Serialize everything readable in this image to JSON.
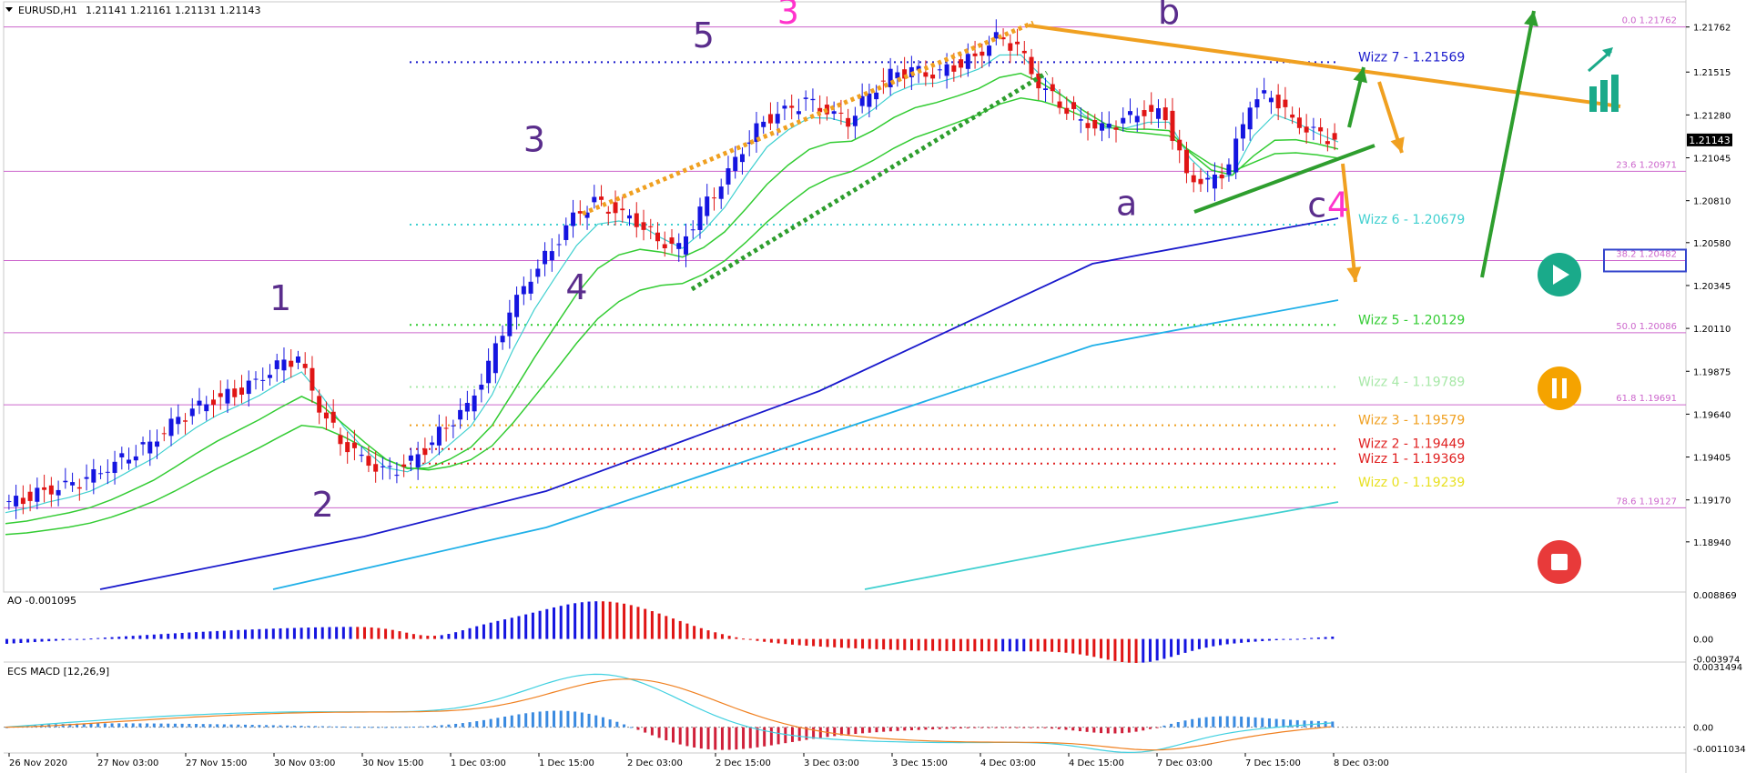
{
  "colors": {
    "background": "#ffffff",
    "bull_candle": "#1515e0",
    "bear_candle": "#e01515",
    "neutral_candle": "#8a8a8a",
    "fib_line": "#cc66cc",
    "wave_label": "#5a2d8c",
    "wave_label_alt": "#ff33cc",
    "ema_fast": "#40d0d0",
    "ema_mid": "#33cc33",
    "ema_slow": "#1a1acc",
    "ema_long": "#20b0e8",
    "arrow_green": "#2e9e2e",
    "arrow_orange": "#f0a020",
    "trend_orange": "#f0a020"
  },
  "header": {
    "symbol": "EURUSD,H1",
    "ohlc": "1.21141 1.21161 1.21131 1.21143"
  },
  "chart_data": [
    {
      "type": "candlestick",
      "title": "EURUSD,H1",
      "ylim": [
        1.1868,
        1.2189
      ],
      "y_ticks": [
        "1.21762",
        "1.21515",
        "1.21280",
        "1.21045",
        "1.20810",
        "1.20580",
        "1.20345",
        "1.20110",
        "1.19875",
        "1.19640",
        "1.19405",
        "1.19170",
        "1.18940"
      ],
      "x_ticks": [
        "26 Nov 2020",
        "27 Nov 03:00",
        "27 Nov 15:00",
        "30 Nov 03:00",
        "30 Nov 15:00",
        "1 Dec 03:00",
        "1 Dec 15:00",
        "2 Dec 03:00",
        "2 Dec 15:00",
        "3 Dec 03:00",
        "3 Dec 15:00",
        "4 Dec 03:00",
        "4 Dec 15:00",
        "7 Dec 03:00",
        "7 Dec 15:00",
        "8 Dec 03:00"
      ],
      "current_price": "1.21143",
      "fib_levels": [
        {
          "label": "0.0 1.21762",
          "value": 1.21762
        },
        {
          "label": "23.6 1.20971",
          "value": 1.20971
        },
        {
          "label": "38.2 1.20482",
          "value": 1.20482
        },
        {
          "label": "50.0 1.20086",
          "value": 1.20086
        },
        {
          "label": "61.8 1.19691",
          "value": 1.19691
        },
        {
          "label": "78.6 1.19127",
          "value": 1.19127
        }
      ],
      "wizz_levels": [
        {
          "label": "Wizz 7 - 1.21569",
          "value": 1.21569,
          "color": "#1a1acc"
        },
        {
          "label": "Wizz 6 - 1.20679",
          "value": 1.20679,
          "color": "#40d0d0"
        },
        {
          "label": "Wizz 5 - 1.20129",
          "value": 1.20129,
          "color": "#33cc33"
        },
        {
          "label": "Wizz 4 - 1.19789",
          "value": 1.19789,
          "color": "#a8e8a8"
        },
        {
          "label": "Wizz 3 - 1.19579",
          "value": 1.19579,
          "color": "#f0a020"
        },
        {
          "label": "Wizz 2 - 1.19449",
          "value": 1.19449,
          "color": "#e02020"
        },
        {
          "label": "Wizz 1 - 1.19369",
          "value": 1.19369,
          "color": "#e02020"
        },
        {
          "label": "Wizz 0 - 1.19239",
          "value": 1.19239,
          "color": "#e8e020"
        }
      ],
      "close_path": [
        1.1914,
        1.1918,
        1.1922,
        1.1924,
        1.1928,
        1.1935,
        1.1942,
        1.1948,
        1.1958,
        1.1966,
        1.1972,
        1.1976,
        1.1982,
        1.199,
        1.1995,
        1.1968,
        1.195,
        1.194,
        1.1932,
        1.1935,
        1.1945,
        1.1958,
        1.1968,
        1.199,
        1.202,
        1.204,
        1.2055,
        1.2072,
        1.208,
        1.2075,
        1.207,
        1.206,
        1.2055,
        1.2075,
        1.209,
        1.211,
        1.2125,
        1.213,
        1.2135,
        1.213,
        1.2125,
        1.214,
        1.215,
        1.2152,
        1.215,
        1.2155,
        1.216,
        1.217,
        1.2165,
        1.2145,
        1.2135,
        1.2125,
        1.212,
        1.2125,
        1.213,
        1.2128,
        1.2095,
        1.209,
        1.21,
        1.2135,
        1.214,
        1.2125,
        1.2118,
        1.2114
      ],
      "wave_labels": [
        {
          "text": "1",
          "date_idx": 13,
          "price": 1.2021
        },
        {
          "text": "2",
          "date_idx": 15,
          "price": 1.1908
        },
        {
          "text": "3",
          "date_idx": 25,
          "price": 1.2108
        },
        {
          "text": "4",
          "date_idx": 27,
          "price": 1.2027
        },
        {
          "text": "5",
          "date_idx": 33,
          "price": 1.2165
        },
        {
          "text": "3",
          "date_idx": 37,
          "price": 1.2178,
          "alt": true
        },
        {
          "text": "a",
          "date_idx": 53,
          "price": 1.2073
        },
        {
          "text": "b",
          "date_idx": 55,
          "price": 1.2178
        },
        {
          "text": "c",
          "date_idx": 62,
          "price": 1.2072
        },
        {
          "text": "4",
          "date_idx": 63,
          "price": 1.2072,
          "alt": true
        }
      ]
    },
    {
      "type": "bar",
      "title": "AO -0.001095",
      "ylim": [
        -0.0041,
        0.0089
      ],
      "y_ticks": [
        "0.008869",
        "0.00",
        "-0.003974"
      ]
    },
    {
      "type": "bar",
      "title": "ECS MACD [12,26,9]",
      "ylim": [
        -0.0012,
        0.0032
      ],
      "y_ticks": [
        "0.0031494",
        "0.00",
        "-0.0011034"
      ]
    }
  ],
  "buttons": {
    "play": "play-icon",
    "pause": "pause-icon",
    "stop": "stop-icon"
  }
}
